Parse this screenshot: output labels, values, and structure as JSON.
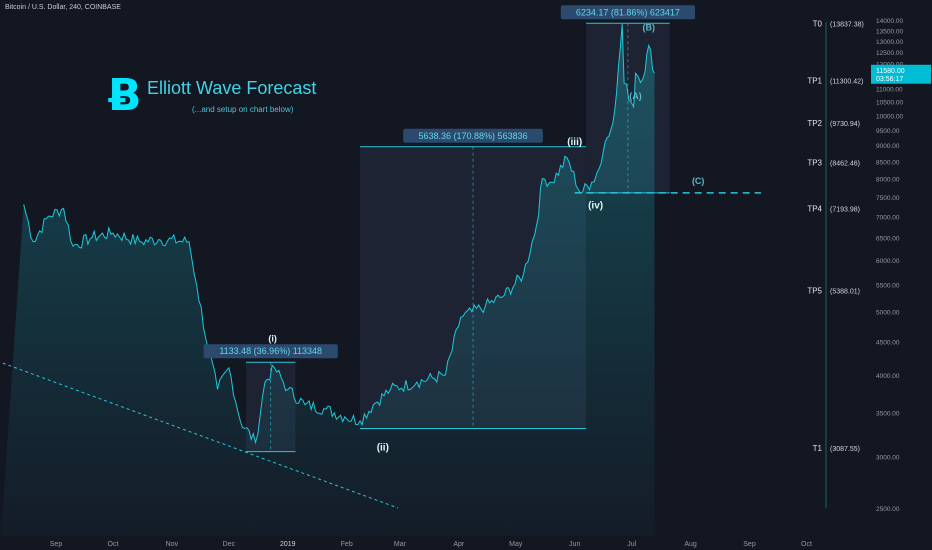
{
  "header": {
    "symbol": "Bitcoin / U.S. Dollar, 240, COINBASE"
  },
  "headline": {
    "logo_glyph": "Ƀ",
    "title": "Elliott Wave Forecast",
    "subtitle": "(...and setup on chart below)"
  },
  "colors": {
    "background": "#131722",
    "accent": "#26c6da",
    "line": "#1ec9d8",
    "box": "#2a3348"
  },
  "chart_data": {
    "type": "line",
    "scale": "log",
    "ylim": [
      2500,
      14000
    ],
    "x_ticks": [
      "Sep",
      "Oct",
      "Nov",
      "Dec",
      "2019",
      "Feb",
      "Mar",
      "Apr",
      "May",
      "Jun",
      "Jul",
      "Aug",
      "Sep",
      "Oct"
    ],
    "y_ticks": [
      2500,
      3000,
      3500,
      4000,
      4500,
      5000,
      5500,
      6000,
      6500,
      7000,
      7500,
      8000,
      8500,
      9000,
      9500,
      10000,
      10500,
      11000,
      11500,
      12000,
      12500,
      13000,
      13500,
      14000
    ],
    "y_tick_labels": [
      "2500.00",
      "3000.00",
      "3500.00",
      "4000.00",
      "4500.00",
      "5000.00",
      "5500.00",
      "6000.00",
      "6500.00",
      "7000.00",
      "7500.00",
      "8000.00",
      "8500.00",
      "9000.00",
      "9500.00",
      "10000.00",
      "10500.00",
      "11000.00",
      "11500.00",
      "12000.00",
      "12500.00",
      "13000.00",
      "13500.00",
      "14000.00"
    ],
    "series": [
      {
        "points": [
          [
            "2018-08-15",
            7300
          ],
          [
            "2018-08-20",
            6400
          ],
          [
            "2018-08-28",
            7000
          ],
          [
            "2018-09-05",
            7200
          ],
          [
            "2018-09-10",
            6300
          ],
          [
            "2018-09-20",
            6500
          ],
          [
            "2018-10-01",
            6600
          ],
          [
            "2018-10-15",
            6400
          ],
          [
            "2018-10-25",
            6450
          ],
          [
            "2018-11-10",
            6400
          ],
          [
            "2018-11-14",
            5500
          ],
          [
            "2018-11-20",
            4400
          ],
          [
            "2018-11-25",
            3800
          ],
          [
            "2018-12-01",
            4100
          ],
          [
            "2018-12-07",
            3400
          ],
          [
            "2018-12-15",
            3150
          ],
          [
            "2018-12-20",
            3900
          ],
          [
            "2018-12-25",
            4100
          ],
          [
            "2019-01-01",
            3800
          ],
          [
            "2019-01-10",
            3600
          ],
          [
            "2019-01-20",
            3550
          ],
          [
            "2019-01-31",
            3450
          ],
          [
            "2019-02-08",
            3400
          ],
          [
            "2019-02-15",
            3600
          ],
          [
            "2019-02-24",
            3800
          ],
          [
            "2019-03-10",
            3900
          ],
          [
            "2019-03-25",
            4000
          ],
          [
            "2019-04-02",
            4900
          ],
          [
            "2019-04-15",
            5100
          ],
          [
            "2019-04-25",
            5300
          ],
          [
            "2019-05-05",
            5700
          ],
          [
            "2019-05-12",
            6800
          ],
          [
            "2019-05-15",
            8000
          ],
          [
            "2019-05-20",
            7900
          ],
          [
            "2019-05-28",
            8600
          ],
          [
            "2019-06-04",
            7600
          ],
          [
            "2019-06-10",
            7900
          ],
          [
            "2019-06-14",
            8300
          ],
          [
            "2019-06-17",
            9100
          ],
          [
            "2019-06-20",
            9500
          ],
          [
            "2019-06-23",
            10800
          ],
          [
            "2019-06-26",
            13800
          ],
          [
            "2019-06-27",
            11200
          ],
          [
            "2019-07-02",
            10300
          ],
          [
            "2019-07-03",
            11600
          ],
          [
            "2019-07-07",
            11400
          ],
          [
            "2019-07-10",
            12800
          ],
          [
            "2019-07-13",
            11600
          ]
        ]
      }
    ],
    "annotations": [
      {
        "text": "(i)",
        "x": "2018-12-24",
        "y": 4500
      },
      {
        "text": "(ii)",
        "x": "2019-02-20",
        "y": 3060
      },
      {
        "text": "(iii)",
        "x": "2019-06-01",
        "y": 9000
      },
      {
        "text": "(iv)",
        "x": "2019-06-12",
        "y": 7200
      },
      {
        "text": "(A)",
        "x": "2019-07-03",
        "y": 10600
      },
      {
        "text": "(B)",
        "x": "2019-07-10",
        "y": 13500
      },
      {
        "text": "(C)",
        "x": "2019-08-05",
        "y": 7850
      }
    ],
    "measurements": [
      {
        "label": "1133.48 (36.96%) 113348",
        "x_start": "2018-12-10",
        "x_end": "2019-01-05",
        "y_low": 3050,
        "y_high": 4183
      },
      {
        "label": "5638.36 (170.88%) 563836",
        "x_start": "2019-02-08",
        "x_end": "2019-06-07",
        "y_low": 3310,
        "y_high": 8948
      },
      {
        "label": "6234.17 (81.86%) 623417",
        "x_start": "2019-06-07",
        "x_end": "2019-07-21",
        "y_low": 7604,
        "y_high": 13838
      }
    ],
    "trendline": {
      "x_start": "2018-08-01",
      "y_start": 4200,
      "x_end": "2019-02-28",
      "y_end": 2500
    },
    "support_line": {
      "y": 7604,
      "x_start": "2019-06-01",
      "x_end": "2019-09-07"
    },
    "targets": [
      {
        "label": "T0",
        "value_label": "(13837.38)",
        "value": 13837.38
      },
      {
        "label": "TP1",
        "value_label": "(11300.42)",
        "value": 11300.42
      },
      {
        "label": "TP2",
        "value_label": "(9730.94)",
        "value": 9730.94
      },
      {
        "label": "TP3",
        "value_label": "(8462.46)",
        "value": 8462.46
      },
      {
        "label": "TP4",
        "value_label": "(7193.98)",
        "value": 7193.98
      },
      {
        "label": "TP5",
        "value_label": "(5388.01)",
        "value": 5388.01
      },
      {
        "label": "T1",
        "value_label": "(3087.55)",
        "value": 3087.55
      }
    ],
    "last_price": {
      "value": 11580,
      "label": "11580.00",
      "timer": "03:56:17"
    }
  }
}
